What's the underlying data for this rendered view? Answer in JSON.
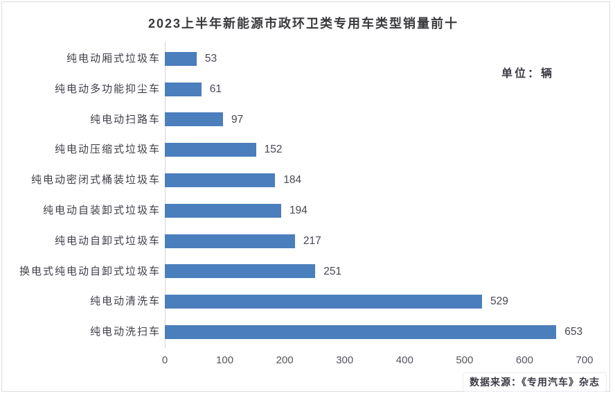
{
  "page": {
    "unit_label": "单位：辆",
    "source_label": "数据来源：《专用汽车》杂志"
  },
  "chart_data": {
    "type": "bar",
    "orientation": "horizontal",
    "title": "2023上半年新能源市政环卫类专用车类型销量前十",
    "unit": "辆",
    "categories": [
      "纯电动厢式垃圾车",
      "纯电动多功能抑尘车",
      "纯电动扫路车",
      "纯电动压缩式垃圾车",
      "纯电动密闭式桶装垃圾车",
      "纯电动自装卸式垃圾车",
      "纯电动自卸式垃圾车",
      "换电式纯电动自卸式垃圾车",
      "纯电动清洗车",
      "纯电动洗扫车"
    ],
    "values": [
      53,
      61,
      97,
      152,
      184,
      194,
      217,
      251,
      529,
      653
    ],
    "xlabel": "",
    "ylabel": "",
    "xlim": [
      0,
      700
    ],
    "xticks": [
      0,
      100,
      200,
      300,
      400,
      500,
      600,
      700
    ],
    "bar_color": "#4A7EBC",
    "value_labels": true,
    "grid": false,
    "legend": false,
    "source": "数据来源：《专用汽车》杂志"
  }
}
